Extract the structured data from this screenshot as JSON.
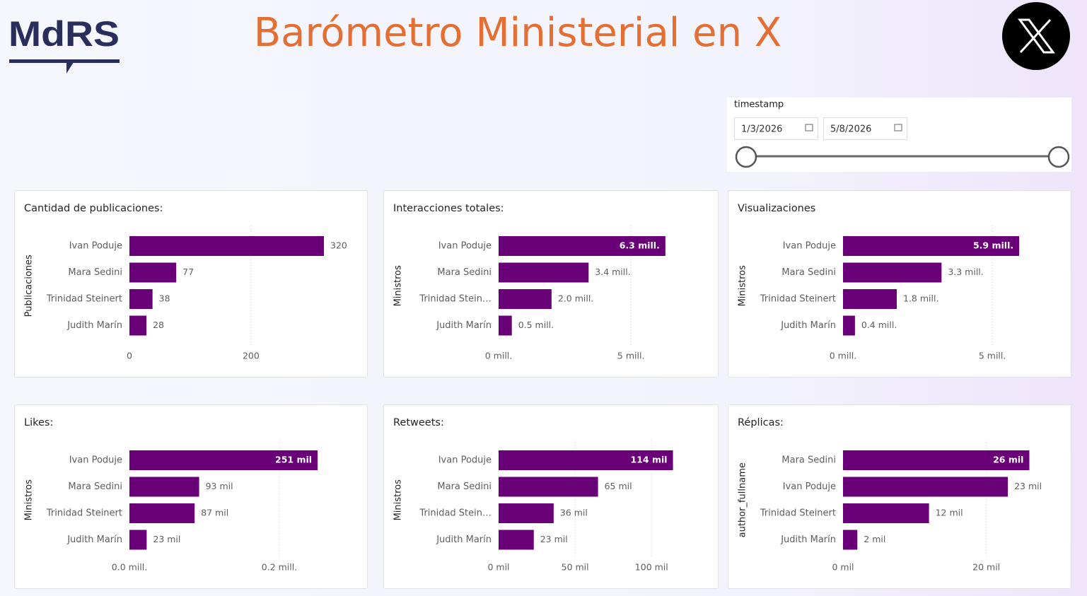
{
  "header": {
    "logo": "MdRS",
    "title": "Barómetro Ministerial en X"
  },
  "slicer": {
    "label": "timestamp",
    "start": "1/3/2026",
    "end": "5/8/2026"
  },
  "chart_data": [
    {
      "type": "hbar",
      "title": "Cantidad de publicaciones:",
      "y_label": "Publicaciones",
      "categories": [
        "Ivan Poduje",
        "Mara Sedini",
        "Trinidad Steinert",
        "Judith Marín"
      ],
      "values": [
        320,
        77,
        38,
        28
      ],
      "color": "#6a0078",
      "xlim": [
        0,
        370
      ],
      "xticks": [
        0,
        200
      ],
      "grid": true
    },
    {
      "type": "hbar",
      "title": "Interacciones totales:",
      "y_label": "Ministros",
      "categories": [
        "Ivan Poduje",
        "Mara Sedini",
        "Trinidad Stein…",
        "Judith Marín"
      ],
      "values": [
        6.3,
        3.4,
        2.0,
        0.5
      ],
      "value_labels": [
        "6.3 mill.",
        "3.4 mill.",
        "2.0 mill.",
        "0.5 mill."
      ],
      "color": "#6a0078",
      "xlim": [
        0,
        7.8
      ],
      "xticks": [
        {
          "value": 0,
          "label": "0 mill."
        },
        {
          "value": 5,
          "label": "5 mill."
        }
      ],
      "grid": true
    },
    {
      "type": "hbar",
      "title": "Visualizaciones",
      "y_label": "Ministros",
      "categories": [
        "Ivan Poduje",
        "Mara Sedini",
        "Trinidad Steinert",
        "Judith Marín"
      ],
      "values": [
        5.9,
        3.3,
        1.8,
        0.4
      ],
      "value_labels": [
        "5.9 mill.",
        "3.3 mill.",
        "1.8 mill.",
        "0.4 mill."
      ],
      "color": "#6a0078",
      "xlim": [
        0,
        7.2
      ],
      "xticks": [
        {
          "value": 0,
          "label": "0 mill."
        },
        {
          "value": 5,
          "label": "5 mill."
        }
      ],
      "grid": true
    },
    {
      "type": "hbar",
      "title": "Likes:",
      "y_label": "Ministros",
      "categories": [
        "Ivan Poduje",
        "Mara Sedini",
        "Trinidad Steinert",
        "Judith Marín"
      ],
      "values": [
        0.251,
        0.093,
        0.087,
        0.023
      ],
      "value_labels": [
        "251 mil",
        "93 mil",
        "87 mil",
        "23 mil"
      ],
      "color": "#6a0078",
      "xlim": [
        0,
        0.3
      ],
      "xticks": [
        {
          "value": 0,
          "label": "0.0 mill."
        },
        {
          "value": 0.2,
          "label": "0.2 mill."
        }
      ],
      "grid": true
    },
    {
      "type": "hbar",
      "title": "Retweets:",
      "y_label": "Ministros",
      "categories": [
        "Ivan Poduje",
        "Mara Sedini",
        "Trinidad Stein…",
        "Judith Marín"
      ],
      "values": [
        114,
        65,
        36,
        23
      ],
      "value_labels": [
        "114 mil",
        "65 mil",
        "36 mil",
        "23 mil"
      ],
      "color": "#6a0078",
      "xlim": [
        0,
        135
      ],
      "xticks": [
        {
          "value": 0,
          "label": "0 mil"
        },
        {
          "value": 50,
          "label": "50 mil"
        },
        {
          "value": 100,
          "label": "100 mil"
        }
      ],
      "grid": true
    },
    {
      "type": "hbar",
      "title": "Réplicas:",
      "y_label": "author_fullname",
      "categories": [
        "Mara Sedini",
        "Ivan Poduje",
        "Trinidad Steinert",
        "Judith Marín"
      ],
      "values": [
        26,
        23,
        12,
        2
      ],
      "value_labels": [
        "26 mil",
        "23 mil",
        "12 mil",
        "2 mil"
      ],
      "color": "#6a0078",
      "xlim": [
        0,
        30
      ],
      "xticks": [
        {
          "value": 0,
          "label": "0 mil"
        },
        {
          "value": 20,
          "label": "20 mil"
        }
      ],
      "grid": true
    }
  ]
}
